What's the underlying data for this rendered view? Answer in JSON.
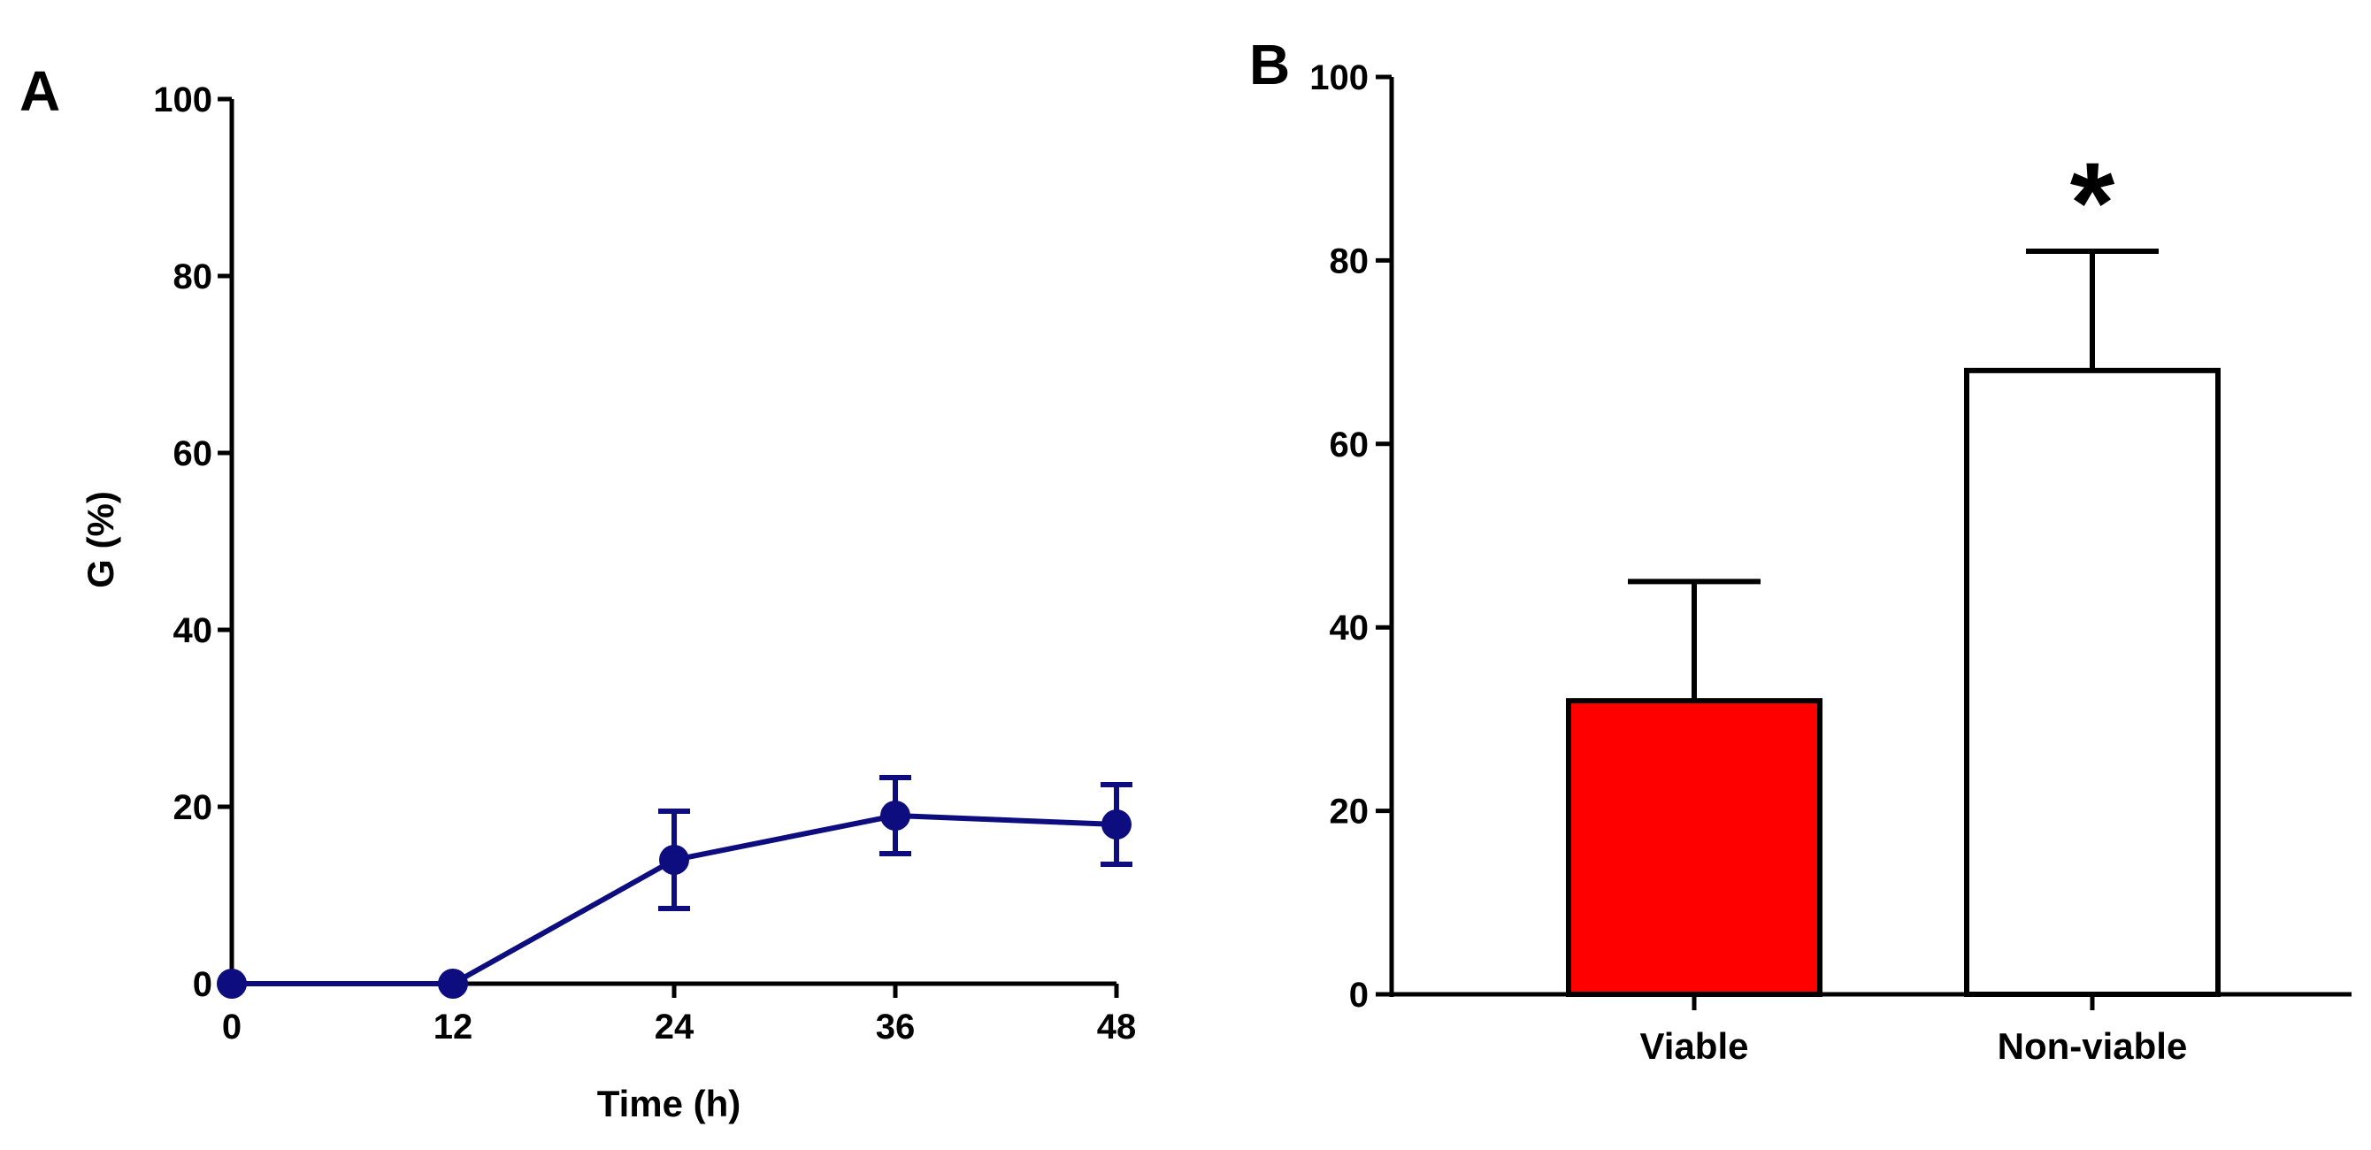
{
  "colors": {
    "line": "#0d0d80",
    "viable_fill": "#ff0000",
    "nonviable_fill": "#ffffff",
    "axis": "#000000"
  },
  "chart_data": [
    {
      "panel": "A",
      "type": "line",
      "title": "",
      "xlabel": "Time (h)",
      "ylabel": "G (%)",
      "xlim": [
        0,
        48
      ],
      "ylim": [
        0,
        100
      ],
      "xticks": [
        0,
        12,
        24,
        36,
        48
      ],
      "yticks": [
        0,
        20,
        40,
        60,
        80,
        100
      ],
      "series": [
        {
          "name": "G",
          "x": [
            0,
            12,
            24,
            36,
            48
          ],
          "y": [
            0,
            0,
            14,
            19,
            18
          ],
          "error": [
            0,
            0,
            5.5,
            4.3,
            4.5
          ]
        }
      ]
    },
    {
      "panel": "B",
      "type": "bar",
      "title": "",
      "xlabel": "",
      "ylabel": "",
      "ylim": [
        0,
        100
      ],
      "yticks": [
        0,
        20,
        40,
        60,
        80,
        100
      ],
      "categories": [
        "Viable",
        "Non-viable"
      ],
      "values": [
        32,
        68
      ],
      "error": [
        13,
        13
      ],
      "annotations": [
        {
          "category": "Non-viable",
          "text": "*"
        }
      ]
    }
  ]
}
